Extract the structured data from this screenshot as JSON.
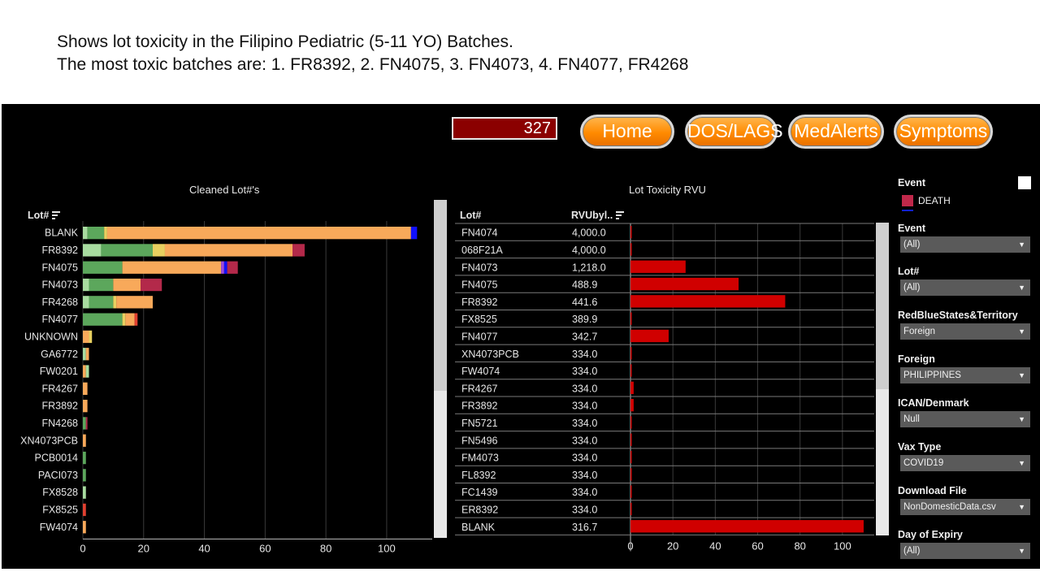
{
  "caption": {
    "line1": "Shows lot toxicity in the Filipino Pediatric (5-11 YO) Batches.",
    "line2": "The most toxic batches are: 1. FR8392, 2. FN4075, 3. FN4073, 4. FN4077, FR4268"
  },
  "counter": "327",
  "nav": [
    "Home",
    "DOS/LAGS",
    "MedAlerts",
    "Symptoms"
  ],
  "left_chart_title": "Cleaned Lot#'s",
  "left_header": "Lot#",
  "right_chart_title": "Lot Toxicity RVU",
  "right_headers": {
    "lot": "Lot#",
    "rvu": "RVUbyl.."
  },
  "colors": {
    "seg_light_green": "#a8dca0",
    "seg_green": "#5ca75c",
    "seg_yellow": "#e8d060",
    "seg_orange": "#f8a95a",
    "seg_crimson": "#b3294a",
    "seg_blue": "#1010ff",
    "seg_purple": "#9d4adf",
    "seg_red": "#e04030",
    "rvu_bar": "#d00000",
    "counter_bg": "#8b0000",
    "nav_orange": "#ff8a00"
  },
  "chart_data": [
    {
      "type": "bar",
      "orientation": "horizontal-stacked",
      "title": "Cleaned Lot#'s",
      "xlim": [
        0,
        115
      ],
      "xticks": [
        0,
        20,
        40,
        60,
        80,
        100
      ],
      "categories": [
        "BLANK",
        "FR8392",
        "FN4075",
        "FN4073",
        "FR4268",
        "FN4077",
        "UNKNOWN",
        "GA6772",
        "FW0201",
        "FR4267",
        "FR3892",
        "FN4268",
        "XN4073PCB",
        "PCB0014",
        "PACI073",
        "FX8528",
        "FX8525",
        "FW4074"
      ],
      "rows": [
        [
          [
            "seg_light_green",
            1.5
          ],
          [
            "seg_green",
            5.5
          ],
          [
            "seg_yellow",
            1
          ],
          [
            "seg_orange",
            100
          ],
          [
            "seg_blue",
            2
          ]
        ],
        [
          [
            "seg_light_green",
            6
          ],
          [
            "seg_green",
            17
          ],
          [
            "seg_yellow",
            4
          ],
          [
            "seg_orange",
            42
          ],
          [
            "seg_crimson",
            4
          ]
        ],
        [
          [
            "seg_green",
            13
          ],
          [
            "seg_orange",
            32.5
          ],
          [
            "seg_purple",
            1
          ],
          [
            "seg_blue",
            1
          ],
          [
            "seg_crimson",
            3.5
          ]
        ],
        [
          [
            "seg_light_green",
            2
          ],
          [
            "seg_green",
            8
          ],
          [
            "seg_orange",
            9
          ],
          [
            "seg_crimson",
            7
          ]
        ],
        [
          [
            "seg_light_green",
            2
          ],
          [
            "seg_green",
            8
          ],
          [
            "seg_yellow",
            1
          ],
          [
            "seg_orange",
            12
          ]
        ],
        [
          [
            "seg_green",
            13
          ],
          [
            "seg_yellow",
            1
          ],
          [
            "seg_orange",
            3
          ],
          [
            "seg_red",
            1
          ]
        ],
        [
          [
            "seg_orange",
            2
          ],
          [
            "seg_yellow",
            1
          ]
        ],
        [
          [
            "seg_light_green",
            1
          ],
          [
            "seg_orange",
            1
          ]
        ],
        [
          [
            "seg_orange",
            1
          ],
          [
            "seg_light_green",
            1
          ]
        ],
        [
          [
            "seg_orange",
            1.5
          ]
        ],
        [
          [
            "seg_orange",
            1.5
          ]
        ],
        [
          [
            "seg_green",
            1
          ],
          [
            "seg_crimson",
            0.5
          ]
        ],
        [
          [
            "seg_orange",
            1
          ]
        ],
        [
          [
            "seg_green",
            1
          ]
        ],
        [
          [
            "seg_green",
            1
          ]
        ],
        [
          [
            "seg_light_green",
            1
          ]
        ],
        [
          [
            "seg_red",
            1
          ]
        ],
        [
          [
            "seg_orange",
            1
          ]
        ]
      ]
    },
    {
      "type": "bar",
      "orientation": "horizontal-table",
      "title": "Lot Toxicity RVU",
      "xlim": [
        0,
        115
      ],
      "xticks": [
        0,
        20,
        40,
        60,
        80,
        100
      ],
      "rows": [
        {
          "lot": "FN4074",
          "rvu": "4,000.0",
          "bar": 0.5
        },
        {
          "lot": "068F21A",
          "rvu": "4,000.0",
          "bar": 0.5
        },
        {
          "lot": "FN4073",
          "rvu": "1,218.0",
          "bar": 26
        },
        {
          "lot": "FN4075",
          "rvu": "488.9",
          "bar": 51
        },
        {
          "lot": "FR8392",
          "rvu": "441.6",
          "bar": 73
        },
        {
          "lot": "FX8525",
          "rvu": "389.9",
          "bar": 0.5
        },
        {
          "lot": "FN4077",
          "rvu": "342.7",
          "bar": 18
        },
        {
          "lot": "XN4073PCB",
          "rvu": "334.0",
          "bar": 0.5
        },
        {
          "lot": "FW4074",
          "rvu": "334.0",
          "bar": 0.5
        },
        {
          "lot": "FR4267",
          "rvu": "334.0",
          "bar": 1.5
        },
        {
          "lot": "FR3892",
          "rvu": "334.0",
          "bar": 1.5
        },
        {
          "lot": "FN5721",
          "rvu": "334.0",
          "bar": 0.5
        },
        {
          "lot": "FN5496",
          "rvu": "334.0",
          "bar": 0.5
        },
        {
          "lot": "FM4073",
          "rvu": "334.0",
          "bar": 0.5
        },
        {
          "lot": "FL8392",
          "rvu": "334.0",
          "bar": 0.5
        },
        {
          "lot": "FC1439",
          "rvu": "334.0",
          "bar": 0.5
        },
        {
          "lot": "ER8392",
          "rvu": "334.0",
          "bar": 0.5
        },
        {
          "lot": "BLANK",
          "rvu": "316.7",
          "bar": 110
        }
      ]
    }
  ],
  "filters": {
    "legend_title": "Event",
    "legend_item": "DEATH",
    "items": [
      {
        "label": "Event",
        "value": "(All)"
      },
      {
        "label": "Lot#",
        "value": "(All)"
      },
      {
        "label": "RedBlueStates&Territory",
        "value": "Foreign"
      },
      {
        "label": "Foreign",
        "value": "PHILIPPINES"
      },
      {
        "label": "ICAN/Denmark",
        "value": "Null"
      },
      {
        "label": "Vax Type",
        "value": "COVID19"
      },
      {
        "label": "Download File",
        "value": "NonDomesticData.csv"
      },
      {
        "label": "Day of Expiry",
        "value": "(All)"
      }
    ]
  }
}
